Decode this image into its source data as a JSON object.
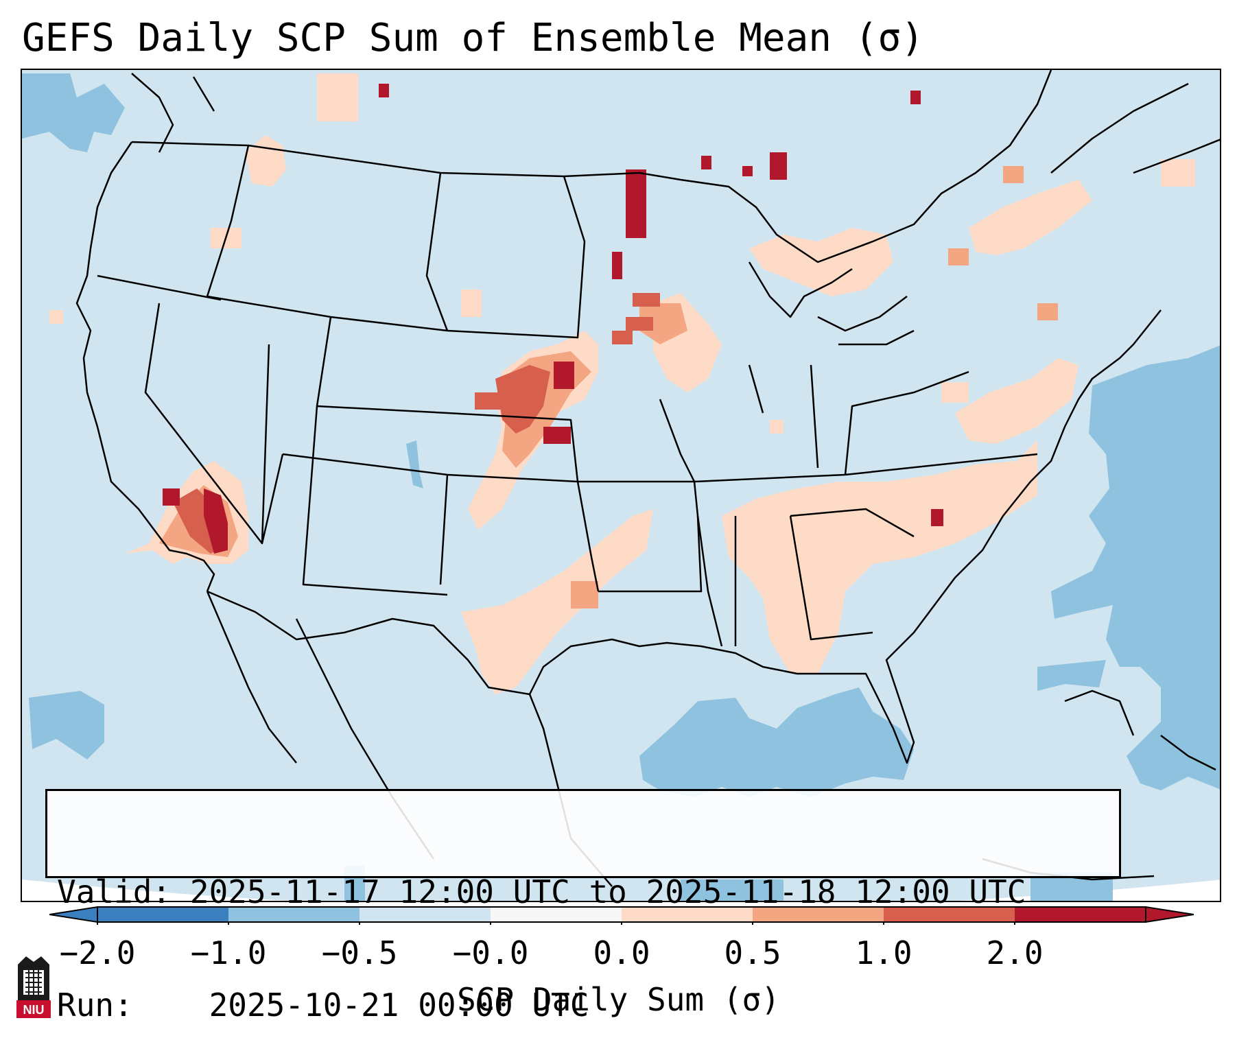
{
  "title": "GEFS Daily SCP Sum of Ensemble Mean (σ)",
  "info": {
    "valid_label": "Valid:",
    "valid_value": "2025-11-17 12:00 UTC to 2025-11-18 12:00 UTC",
    "run_label": "Run:",
    "run_value": "2025-10-21 00:00 UTC"
  },
  "colorbar": {
    "label": "SCP Daily Sum (σ)",
    "ticks": [
      "−2.0",
      "−1.0",
      "−0.5",
      "−0.0",
      "0.0",
      "0.5",
      "1.0",
      "2.0"
    ],
    "colors": [
      "#3b7fbf",
      "#8fc2df",
      "#d1e5f0",
      "#f7f7f7",
      "#fddbc7",
      "#f4a582",
      "#d6604d",
      "#b2182b"
    ]
  },
  "legend_colors": {
    "ocean_bg": "#d1e5f0",
    "negative": "#8fc2df",
    "slight_positive": "#fddbc7",
    "moderate_positive": "#f4a582",
    "strong_positive": "#d6604d",
    "extreme_positive": "#b2182b"
  },
  "logo": {
    "text": "NIU",
    "icon": "niu-tower-icon"
  }
}
